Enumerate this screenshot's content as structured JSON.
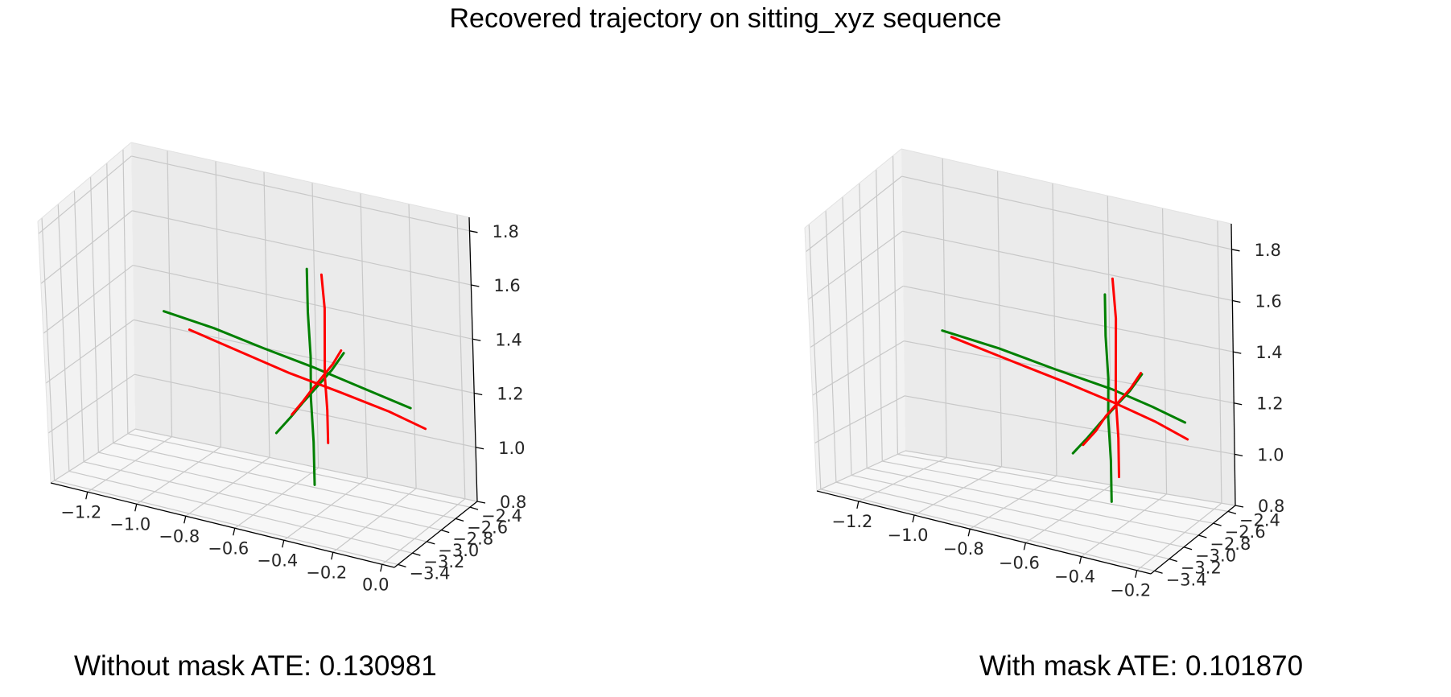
{
  "figure": {
    "title": "Recovered trajectory on sitting_xyz sequence"
  },
  "captions": {
    "left": "Without mask ATE: 0.130981",
    "right": "With mask ATE: 0.101870"
  },
  "colors": {
    "ground_truth": "#008000",
    "estimated": "#ff0000",
    "pane_left": "#f2f2f2",
    "pane_back": "#ebebeb",
    "pane_floor": "#f7f7f7",
    "grid": "#c8c8c8"
  },
  "chart_data": [
    {
      "type": "line",
      "projection": "3d",
      "title": "",
      "caption": "Without mask ATE: 0.130981",
      "grid": true,
      "xlim": [
        -1.35,
        0.05
      ],
      "ylim": [
        -3.45,
        -2.3
      ],
      "zlim": [
        0.8,
        1.85
      ],
      "x_ticks": [
        "−1.2",
        "−1.0",
        "−0.8",
        "−0.6",
        "−0.4",
        "−0.2",
        "0.0"
      ],
      "y_ticks": [
        "−3.4",
        "−3.2",
        "−3.0",
        "−2.8",
        "−2.6",
        "−2.4"
      ],
      "z_ticks": [
        "0.8",
        "1.0",
        "1.2",
        "1.4",
        "1.6",
        "1.8"
      ],
      "series": [
        {
          "color": "#008000",
          "x": [
            -0.45,
            -0.45,
            -0.46,
            -0.46,
            -0.47,
            -0.47
          ],
          "y": [
            -2.85,
            -2.85,
            -2.84,
            -2.83,
            -2.82,
            -2.82
          ],
          "z": [
            0.88,
            1.05,
            1.22,
            1.38,
            1.55,
            1.72
          ]
        },
        {
          "color": "#008000",
          "x": [
            -1.05,
            -0.85,
            -0.65,
            -0.45,
            -0.25,
            -0.05
          ],
          "y": [
            -2.85,
            -2.84,
            -2.84,
            -2.83,
            -2.84,
            -2.85
          ],
          "z": [
            1.42,
            1.4,
            1.37,
            1.34,
            1.31,
            1.28
          ]
        },
        {
          "color": "#008000",
          "x": [
            -0.45,
            -0.45,
            -0.46,
            -0.46,
            -0.46,
            -0.47
          ],
          "y": [
            -3.35,
            -3.15,
            -2.95,
            -2.75,
            -2.55,
            -2.35
          ],
          "z": [
            1.22,
            1.23,
            1.23,
            1.24,
            1.25,
            1.26
          ]
        },
        {
          "color": "#ff0000",
          "x": [
            -0.4,
            -0.4,
            -0.41,
            -0.41,
            -0.41,
            -0.42
          ],
          "y": [
            -2.82,
            -2.82,
            -2.81,
            -2.8,
            -2.79,
            -2.79
          ],
          "z": [
            1.05,
            1.18,
            1.31,
            1.44,
            1.57,
            1.7
          ]
        },
        {
          "color": "#ff0000",
          "x": [
            -0.95,
            -0.75,
            -0.55,
            -0.35,
            -0.15,
            0.0
          ],
          "y": [
            -2.84,
            -2.83,
            -2.82,
            -2.81,
            -2.81,
            -2.82
          ],
          "z": [
            1.37,
            1.33,
            1.29,
            1.26,
            1.23,
            1.2
          ]
        },
        {
          "color": "#ff0000",
          "x": [
            -0.43,
            -0.43,
            -0.44,
            -0.44,
            -0.44,
            -0.45
          ],
          "y": [
            -3.2,
            -3.05,
            -2.9,
            -2.75,
            -2.6,
            -2.45
          ],
          "z": [
            1.26,
            1.27,
            1.27,
            1.28,
            1.29,
            1.3
          ]
        }
      ]
    },
    {
      "type": "line",
      "projection": "3d",
      "title": "",
      "caption": "With mask ATE: 0.101870",
      "grid": true,
      "xlim": [
        -1.35,
        -0.15
      ],
      "ylim": [
        -3.45,
        -2.3
      ],
      "zlim": [
        0.8,
        1.9
      ],
      "x_ticks": [
        "−1.2",
        "−1.0",
        "−0.8",
        "−0.6",
        "−0.4",
        "−0.2"
      ],
      "y_ticks": [
        "−3.4",
        "−3.2",
        "−3.0",
        "−2.8",
        "−2.6",
        "−2.4"
      ],
      "z_ticks": [
        "0.8",
        "1.0",
        "1.2",
        "1.4",
        "1.6",
        "1.8"
      ],
      "series": [
        {
          "color": "#008000",
          "x": [
            -0.45,
            -0.45,
            -0.46,
            -0.46,
            -0.47,
            -0.47
          ],
          "y": [
            -2.85,
            -2.85,
            -2.84,
            -2.83,
            -2.82,
            -2.82
          ],
          "z": [
            0.88,
            1.05,
            1.22,
            1.38,
            1.55,
            1.72
          ]
        },
        {
          "color": "#008000",
          "x": [
            -1.05,
            -0.85,
            -0.65,
            -0.45,
            -0.3,
            -0.18
          ],
          "y": [
            -2.85,
            -2.84,
            -2.84,
            -2.83,
            -2.84,
            -2.85
          ],
          "z": [
            1.42,
            1.4,
            1.37,
            1.34,
            1.31,
            1.28
          ]
        },
        {
          "color": "#008000",
          "x": [
            -0.45,
            -0.45,
            -0.46,
            -0.46,
            -0.46,
            -0.47
          ],
          "y": [
            -3.35,
            -3.15,
            -2.95,
            -2.75,
            -2.55,
            -2.35
          ],
          "z": [
            1.22,
            1.23,
            1.23,
            1.24,
            1.25,
            1.26
          ]
        },
        {
          "color": "#ff0000",
          "x": [
            -0.43,
            -0.43,
            -0.44,
            -0.44,
            -0.44,
            -0.45
          ],
          "y": [
            -2.82,
            -2.82,
            -2.81,
            -2.8,
            -2.79,
            -2.79
          ],
          "z": [
            0.98,
            1.14,
            1.3,
            1.46,
            1.62,
            1.78
          ]
        },
        {
          "color": "#ff0000",
          "x": [
            -1.02,
            -0.82,
            -0.62,
            -0.45,
            -0.3,
            -0.18
          ],
          "y": [
            -2.84,
            -2.83,
            -2.82,
            -2.81,
            -2.81,
            -2.82
          ],
          "z": [
            1.4,
            1.36,
            1.32,
            1.28,
            1.24,
            1.2
          ]
        },
        {
          "color": "#ff0000",
          "x": [
            -0.44,
            -0.44,
            -0.45,
            -0.45,
            -0.45,
            -0.46
          ],
          "y": [
            -3.25,
            -3.08,
            -2.91,
            -2.74,
            -2.57,
            -2.4
          ],
          "z": [
            1.23,
            1.24,
            1.25,
            1.26,
            1.27,
            1.28
          ]
        }
      ]
    }
  ]
}
